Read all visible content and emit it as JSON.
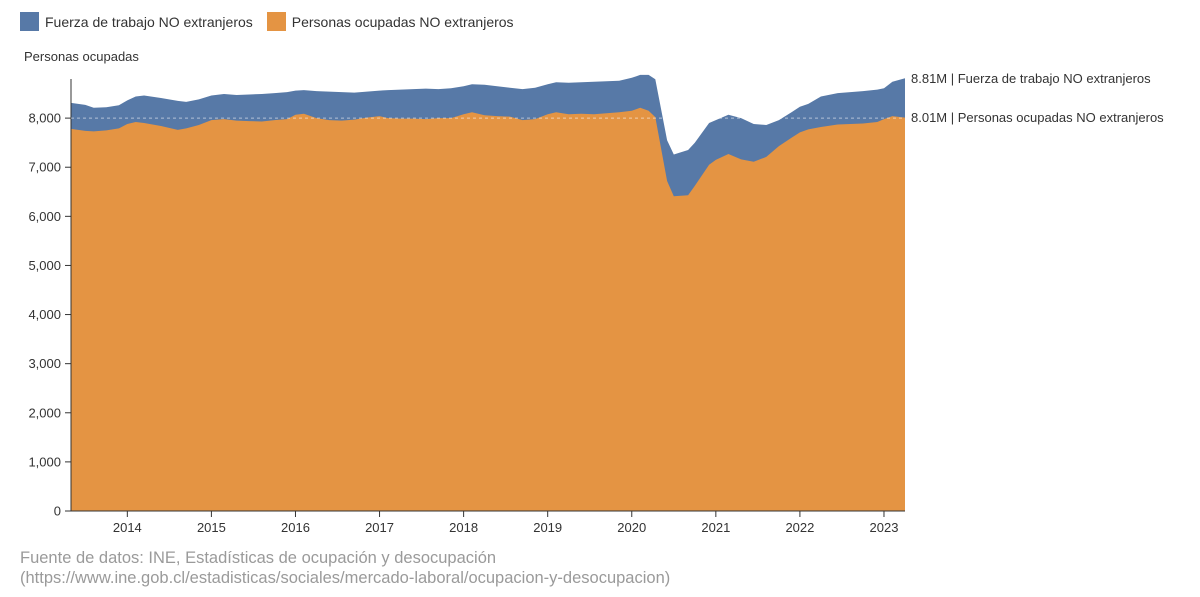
{
  "colors": {
    "fuerza": "#5779a7",
    "ocupadas": "#e49443",
    "axis": "#333333",
    "source_text": "#9a9a9a"
  },
  "legend": {
    "items": [
      {
        "label": "Fuerza de trabajo NO extranjeros",
        "color": "#5779a7"
      },
      {
        "label": "Personas ocupadas NO extranjeros",
        "color": "#e49443"
      }
    ]
  },
  "source": {
    "line1": "Fuente de datos: INE, Estadísticas de ocupación y desocupación",
    "line2": "(https://www.ine.gob.cl/estadisticas/sociales/mercado-laboral/ocupacion-y-desocupacion)"
  },
  "chart_data": {
    "type": "area",
    "ylabel": "Personas ocupadas",
    "ylim": [
      0,
      9000
    ],
    "yticks": [
      0,
      1000,
      2000,
      3000,
      4000,
      5000,
      6000,
      7000,
      8000
    ],
    "ytick_labels": [
      "0",
      "1,000",
      "2,000",
      "3,000",
      "4,000",
      "5,000",
      "6,000",
      "7,000",
      "8,000"
    ],
    "xlim": [
      2013.33,
      2023.25
    ],
    "xticks": [
      2014,
      2015,
      2016,
      2017,
      2018,
      2019,
      2020,
      2021,
      2022,
      2023
    ],
    "xtick_labels": [
      "2014",
      "2015",
      "2016",
      "2017",
      "2018",
      "2019",
      "2020",
      "2021",
      "2022",
      "2023"
    ],
    "x": [
      2013.33,
      2013.5,
      2013.6,
      2013.75,
      2013.9,
      2014.0,
      2014.1,
      2014.2,
      2014.4,
      2014.6,
      2014.7,
      2014.85,
      2015.0,
      2015.15,
      2015.3,
      2015.45,
      2015.6,
      2015.75,
      2015.9,
      2016.0,
      2016.1,
      2016.25,
      2016.4,
      2016.55,
      2016.7,
      2016.85,
      2017.0,
      2017.1,
      2017.25,
      2017.4,
      2017.55,
      2017.7,
      2017.85,
      2018.0,
      2018.1,
      2018.25,
      2018.4,
      2018.55,
      2018.7,
      2018.85,
      2019.0,
      2019.1,
      2019.25,
      2019.4,
      2019.55,
      2019.7,
      2019.85,
      2020.0,
      2020.1,
      2020.2,
      2020.28,
      2020.42,
      2020.5,
      2020.67,
      2020.75,
      2020.92,
      2021.0,
      2021.15,
      2021.3,
      2021.45,
      2021.6,
      2021.75,
      2021.9,
      2022.0,
      2022.1,
      2022.25,
      2022.45,
      2022.6,
      2022.75,
      2022.92,
      2023.0,
      2023.1,
      2023.25
    ],
    "series": [
      {
        "name": "Fuerza de trabajo NO extranjeros",
        "color": "#5779a7",
        "end_label": "8.81M | Fuerza de trabajo NO extranjeros",
        "values": [
          8310,
          8270,
          8210,
          8220,
          8260,
          8360,
          8440,
          8460,
          8410,
          8350,
          8330,
          8380,
          8460,
          8490,
          8470,
          8480,
          8490,
          8510,
          8530,
          8560,
          8570,
          8550,
          8540,
          8530,
          8520,
          8540,
          8560,
          8570,
          8580,
          8590,
          8600,
          8590,
          8610,
          8650,
          8690,
          8680,
          8650,
          8620,
          8590,
          8620,
          8690,
          8730,
          8720,
          8730,
          8740,
          8750,
          8760,
          8820,
          8880,
          8880,
          8790,
          7550,
          7260,
          7350,
          7500,
          7900,
          7960,
          8070,
          8000,
          7880,
          7860,
          7960,
          8120,
          8230,
          8290,
          8440,
          8510,
          8530,
          8550,
          8580,
          8610,
          8740,
          8810
        ]
      },
      {
        "name": "Personas ocupadas NO extranjeros",
        "color": "#e49443",
        "end_label": "8.01M | Personas ocupadas NO extranjeros",
        "values": [
          7780,
          7740,
          7730,
          7750,
          7790,
          7880,
          7920,
          7900,
          7840,
          7760,
          7790,
          7860,
          7960,
          7980,
          7950,
          7940,
          7930,
          7960,
          7980,
          8070,
          8090,
          8000,
          7960,
          7950,
          7970,
          8010,
          8040,
          8000,
          7990,
          7990,
          7980,
          8000,
          8000,
          8080,
          8120,
          8060,
          8040,
          8030,
          7960,
          7980,
          8080,
          8120,
          8080,
          8090,
          8080,
          8100,
          8120,
          8150,
          8210,
          8150,
          8020,
          6720,
          6410,
          6430,
          6620,
          7050,
          7150,
          7270,
          7160,
          7110,
          7210,
          7430,
          7600,
          7710,
          7770,
          7820,
          7870,
          7880,
          7890,
          7920,
          7980,
          8040,
          8010
        ]
      }
    ]
  }
}
